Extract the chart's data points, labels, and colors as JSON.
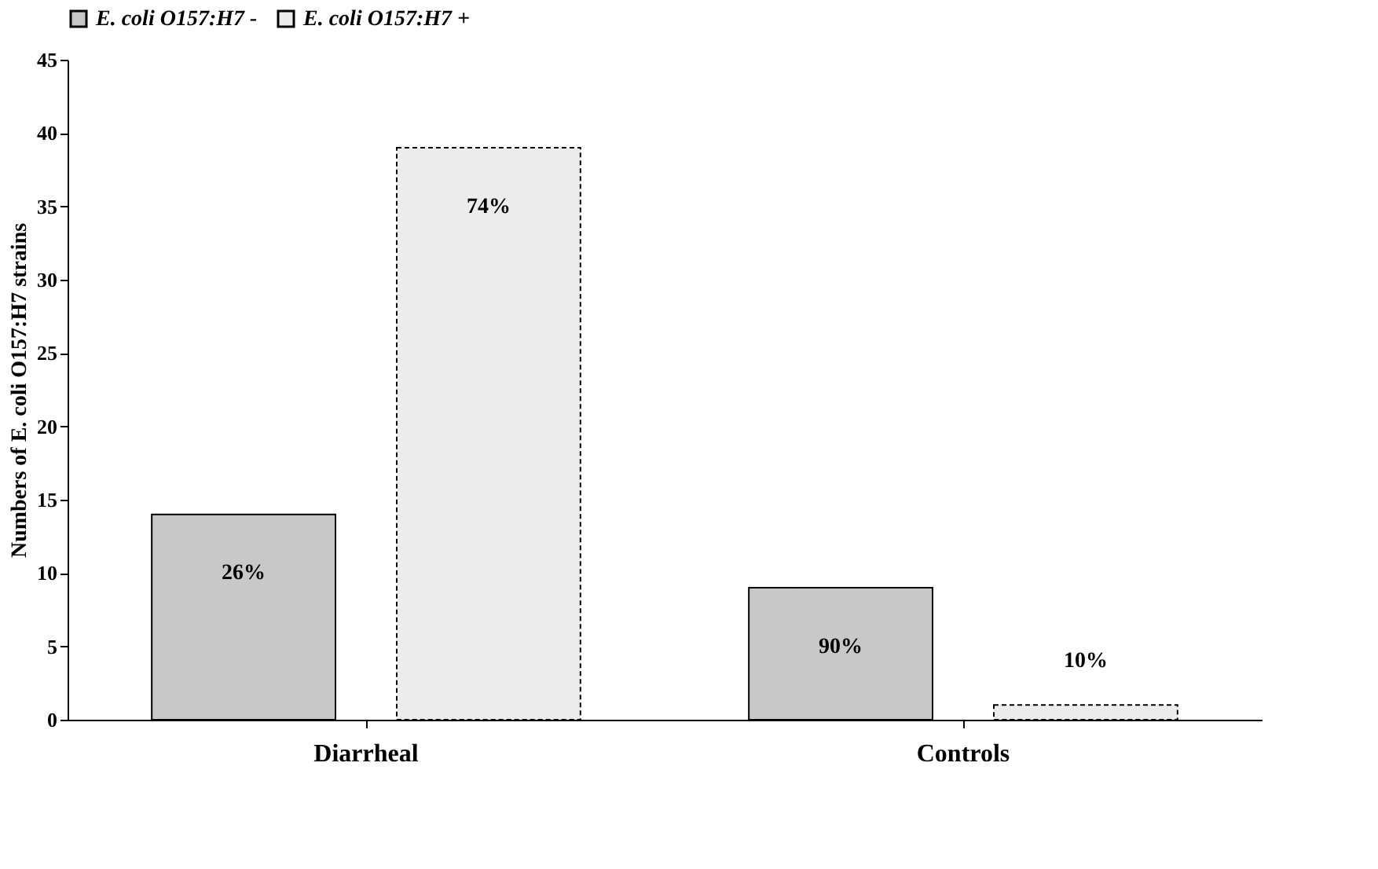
{
  "chart_data": {
    "type": "bar",
    "categories": [
      "Diarrheal",
      "Controls"
    ],
    "ylabel": "Numbers of E. coli O157:H7 strains",
    "series": [
      {
        "name": "E. coli O157:H7 -",
        "color": "#c8c8c8",
        "line_style": "solid",
        "values": [
          14,
          9
        ]
      },
      {
        "name": "E. coli O157:H7 +",
        "color": "#ececec",
        "line_style": "dashed",
        "values": [
          39,
          1
        ]
      }
    ],
    "annotations": [
      "26%",
      "74%",
      "90%",
      "10%"
    ],
    "ylim": [
      0,
      45
    ],
    "yticks": [
      0,
      5,
      10,
      15,
      20,
      25,
      30,
      35,
      40,
      45
    ],
    "grid": false,
    "legend": "top"
  }
}
